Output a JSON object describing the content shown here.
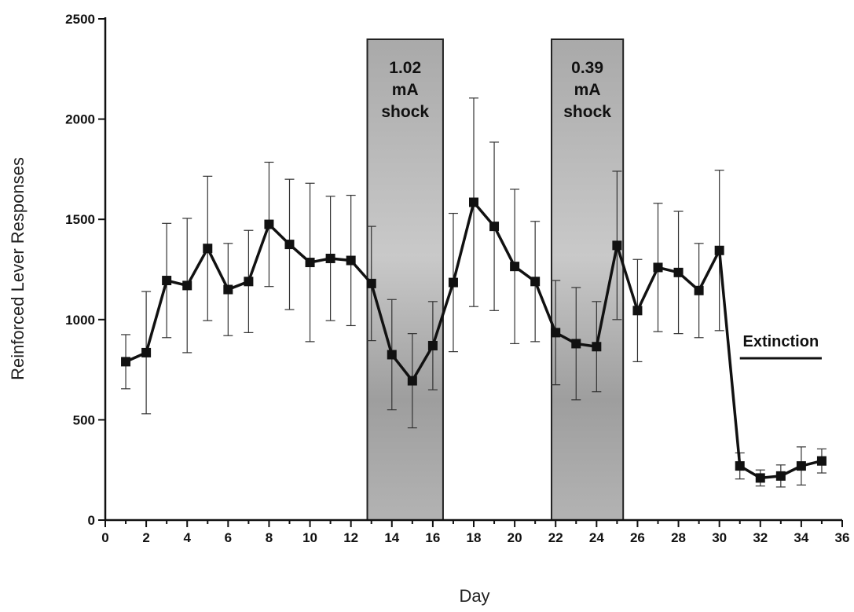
{
  "chart_data": {
    "type": "line",
    "xlabel": "Day",
    "ylabel": "Reinforced Lever Responses",
    "xlim": [
      0,
      36
    ],
    "ylim": [
      0,
      2500
    ],
    "x_ticks": [
      0,
      2,
      4,
      6,
      8,
      10,
      12,
      14,
      16,
      18,
      20,
      22,
      24,
      26,
      28,
      30,
      32,
      34,
      36
    ],
    "y_ticks": [
      0,
      500,
      1000,
      1500,
      2000,
      2500
    ],
    "grid": false,
    "series": [
      {
        "marker": "square",
        "color": "#111111",
        "x": [
          1,
          2,
          3,
          4,
          5,
          6,
          7,
          8,
          9,
          10,
          11,
          12,
          13,
          14,
          15,
          16,
          17,
          18,
          19,
          20,
          21,
          22,
          23,
          24,
          25,
          26,
          27,
          28,
          29,
          30,
          31,
          32,
          33,
          34,
          35
        ],
        "y": [
          790,
          835,
          1195,
          1170,
          1355,
          1150,
          1190,
          1475,
          1375,
          1285,
          1305,
          1295,
          1180,
          825,
          695,
          870,
          1185,
          1585,
          1465,
          1265,
          1190,
          935,
          880,
          865,
          1370,
          1045,
          1260,
          1235,
          1145,
          1345,
          270,
          210,
          220,
          270,
          295
        ],
        "error": [
          135,
          305,
          285,
          335,
          360,
          230,
          255,
          310,
          325,
          395,
          310,
          325,
          285,
          275,
          235,
          220,
          345,
          520,
          420,
          385,
          300,
          260,
          280,
          225,
          370,
          255,
          320,
          305,
          235,
          400,
          65,
          40,
          55,
          95,
          60
        ]
      }
    ],
    "shaded_regions": [
      {
        "x_start": 12.8,
        "x_end": 16.5,
        "label_lines": [
          "1.02",
          "mA",
          "shock"
        ]
      },
      {
        "x_start": 21.8,
        "x_end": 25.3,
        "label_lines": [
          "0.39",
          "mA",
          "shock"
        ]
      }
    ],
    "annotation": {
      "text": "Extinction",
      "x_start": 31,
      "x_end": 35
    }
  }
}
